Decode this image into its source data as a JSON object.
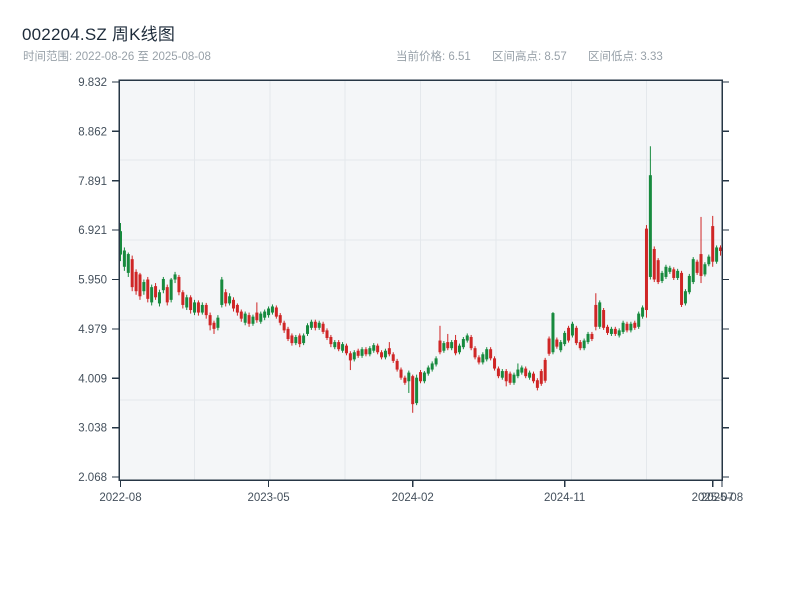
{
  "header": {
    "title": "002204.SZ 周K线图",
    "subtitle": "时间范围: 2022-08-26 至 2025-08-08",
    "stats": [
      {
        "label": "当前价格",
        "value": "6.51",
        "text": "当前价格: 6.51"
      },
      {
        "label": "区间高点",
        "value": "8.57",
        "text": "区间高点: 8.57"
      },
      {
        "label": "区间低点",
        "value": "3.33",
        "text": "区间低点: 3.33"
      }
    ]
  },
  "chart_data": {
    "type": "candlestick",
    "title": "002204.SZ 周K线图",
    "symbol": "002204.SZ",
    "period": "weekly",
    "date_range": {
      "start": "2022-08-26",
      "end": "2025-08-08"
    },
    "current_price": 6.51,
    "range_high": 8.57,
    "range_low": 3.33,
    "legend": "none",
    "grid": {
      "h_fractions": [
        0.2,
        0.4,
        0.6,
        0.8
      ],
      "v_fractions": [
        0.125,
        0.25,
        0.375,
        0.5,
        0.625,
        0.75,
        0.875
      ]
    },
    "colors": {
      "up": "#178a3e",
      "down": "#cf2626",
      "frame": "#263645",
      "grid": "#e4e8ec",
      "plot_bg": "#f4f6f8"
    },
    "y_axis": {
      "min": 2.068,
      "max": 9.832,
      "ticks": [
        9.832,
        8.862,
        7.891,
        6.921,
        5.95,
        4.979,
        4.009,
        3.038,
        2.068
      ],
      "tick_labels": [
        "9.832",
        "8.862",
        "7.891",
        "6.921",
        "5.950",
        "4.979",
        "4.009",
        "3.038",
        "2.068"
      ]
    },
    "x_axis": {
      "tick_weeks": [
        0,
        38,
        75,
        114,
        152,
        154.4
      ],
      "tick_labels": [
        "2022-08",
        "2023-05",
        "2024-02",
        "2024-11",
        "2025-07",
        "2025-08"
      ]
    },
    "candles_format": [
      "open",
      "high",
      "low",
      "close"
    ],
    "candles": [
      [
        6.44,
        7.06,
        6.31,
        6.9
      ],
      [
        6.2,
        6.58,
        6.12,
        6.52
      ],
      [
        6.08,
        6.48,
        6.0,
        6.45
      ],
      [
        6.35,
        6.42,
        5.72,
        5.8
      ],
      [
        6.1,
        6.15,
        5.65,
        5.72
      ],
      [
        6.05,
        6.08,
        5.55,
        5.62
      ],
      [
        5.72,
        5.95,
        5.65,
        5.9
      ],
      [
        5.95,
        6.0,
        5.5,
        5.57
      ],
      [
        5.5,
        5.85,
        5.44,
        5.8
      ],
      [
        5.82,
        5.88,
        5.55,
        5.6
      ],
      [
        5.48,
        5.75,
        5.42,
        5.7
      ],
      [
        5.74,
        6.0,
        5.68,
        5.96
      ],
      [
        5.8,
        5.85,
        5.44,
        5.5
      ],
      [
        5.55,
        5.98,
        5.5,
        5.95
      ],
      [
        5.95,
        6.1,
        5.88,
        6.05
      ],
      [
        6.0,
        6.04,
        5.64,
        5.7
      ],
      [
        5.7,
        5.74,
        5.38,
        5.45
      ],
      [
        5.4,
        5.65,
        5.35,
        5.6
      ],
      [
        5.6,
        5.64,
        5.28,
        5.35
      ],
      [
        5.3,
        5.55,
        5.25,
        5.5
      ],
      [
        5.5,
        5.54,
        5.24,
        5.3
      ],
      [
        5.3,
        5.5,
        5.26,
        5.45
      ],
      [
        5.45,
        5.49,
        5.18,
        5.25
      ],
      [
        5.25,
        5.3,
        4.95,
        5.05
      ],
      [
        5.1,
        5.14,
        4.88,
        4.98
      ],
      [
        5.0,
        5.25,
        4.95,
        5.2
      ],
      [
        5.45,
        6.0,
        5.4,
        5.95
      ],
      [
        5.7,
        5.76,
        5.42,
        5.48
      ],
      [
        5.48,
        5.68,
        5.44,
        5.62
      ],
      [
        5.55,
        5.6,
        5.32,
        5.38
      ],
      [
        5.45,
        5.48,
        5.24,
        5.3
      ],
      [
        5.32,
        5.36,
        5.12,
        5.18
      ],
      [
        5.1,
        5.32,
        5.05,
        5.28
      ],
      [
        5.25,
        5.3,
        5.02,
        5.08
      ],
      [
        5.08,
        5.26,
        5.04,
        5.22
      ],
      [
        5.3,
        5.5,
        5.1,
        5.15
      ],
      [
        5.12,
        5.32,
        5.08,
        5.28
      ],
      [
        5.2,
        5.36,
        5.15,
        5.32
      ],
      [
        5.25,
        5.42,
        5.2,
        5.38
      ],
      [
        5.3,
        5.46,
        5.26,
        5.42
      ],
      [
        5.4,
        5.44,
        5.18,
        5.22
      ],
      [
        5.25,
        5.29,
        5.05,
        5.1
      ],
      [
        5.1,
        5.14,
        4.9,
        4.95
      ],
      [
        4.98,
        5.02,
        4.74,
        4.78
      ],
      [
        4.85,
        4.89,
        4.65,
        4.7
      ],
      [
        4.7,
        4.86,
        4.66,
        4.82
      ],
      [
        4.85,
        4.89,
        4.62,
        4.68
      ],
      [
        4.7,
        4.89,
        4.66,
        4.85
      ],
      [
        4.88,
        5.09,
        4.84,
        5.05
      ],
      [
        5.0,
        5.16,
        4.96,
        5.12
      ],
      [
        5.12,
        5.16,
        4.95,
        5.0
      ],
      [
        5.0,
        5.14,
        4.96,
        5.1
      ],
      [
        5.08,
        5.12,
        4.88,
        4.92
      ],
      [
        4.95,
        4.99,
        4.76,
        4.8
      ],
      [
        4.82,
        4.86,
        4.62,
        4.68
      ],
      [
        4.62,
        4.76,
        4.58,
        4.72
      ],
      [
        4.72,
        4.76,
        4.54,
        4.58
      ],
      [
        4.55,
        4.72,
        4.51,
        4.68
      ],
      [
        4.65,
        4.69,
        4.46,
        4.5
      ],
      [
        4.5,
        4.54,
        4.17,
        4.36
      ],
      [
        4.38,
        4.56,
        4.34,
        4.52
      ],
      [
        4.55,
        4.59,
        4.41,
        4.45
      ],
      [
        4.45,
        4.62,
        4.41,
        4.58
      ],
      [
        4.58,
        4.62,
        4.44,
        4.48
      ],
      [
        4.48,
        4.64,
        4.44,
        4.6
      ],
      [
        4.55,
        4.7,
        4.51,
        4.66
      ],
      [
        4.65,
        4.69,
        4.48,
        4.52
      ],
      [
        4.52,
        4.56,
        4.38,
        4.42
      ],
      [
        4.42,
        4.59,
        4.38,
        4.55
      ],
      [
        4.6,
        4.72,
        4.44,
        4.48
      ],
      [
        4.48,
        4.52,
        4.31,
        4.35
      ],
      [
        4.35,
        4.39,
        4.14,
        4.18
      ],
      [
        4.18,
        4.22,
        3.98,
        4.02
      ],
      [
        4.02,
        4.06,
        3.88,
        3.92
      ],
      [
        3.95,
        4.16,
        3.72,
        4.12
      ],
      [
        4.05,
        4.08,
        3.33,
        3.5
      ],
      [
        3.52,
        4.08,
        3.48,
        4.02
      ],
      [
        4.13,
        4.17,
        3.91,
        3.95
      ],
      [
        3.95,
        4.15,
        3.91,
        4.12
      ],
      [
        4.1,
        4.26,
        4.06,
        4.22
      ],
      [
        4.18,
        4.34,
        4.14,
        4.3
      ],
      [
        4.28,
        4.44,
        4.24,
        4.4
      ],
      [
        4.75,
        5.04,
        4.48,
        4.52
      ],
      [
        4.55,
        4.74,
        4.51,
        4.7
      ],
      [
        4.72,
        4.88,
        4.56,
        4.6
      ],
      [
        4.6,
        4.76,
        4.56,
        4.72
      ],
      [
        4.76,
        4.86,
        4.46,
        4.5
      ],
      [
        4.52,
        4.69,
        4.48,
        4.65
      ],
      [
        4.62,
        4.82,
        4.58,
        4.78
      ],
      [
        4.75,
        4.89,
        4.71,
        4.85
      ],
      [
        4.82,
        4.86,
        4.56,
        4.6
      ],
      [
        4.6,
        4.64,
        4.38,
        4.42
      ],
      [
        4.42,
        4.46,
        4.28,
        4.32
      ],
      [
        4.32,
        4.52,
        4.28,
        4.48
      ],
      [
        4.38,
        4.62,
        4.34,
        4.58
      ],
      [
        4.58,
        4.62,
        4.36,
        4.4
      ],
      [
        4.4,
        4.44,
        4.16,
        4.2
      ],
      [
        4.2,
        4.24,
        4.01,
        4.05
      ],
      [
        4.02,
        4.19,
        3.98,
        4.15
      ],
      [
        4.15,
        4.19,
        3.85,
        3.95
      ],
      [
        4.1,
        4.14,
        3.88,
        3.92
      ],
      [
        3.92,
        4.12,
        3.88,
        4.08
      ],
      [
        4.05,
        4.3,
        4.01,
        4.18
      ],
      [
        4.12,
        4.26,
        4.08,
        4.22
      ],
      [
        4.2,
        4.24,
        4.01,
        4.05
      ],
      [
        4.02,
        4.16,
        3.98,
        4.12
      ],
      [
        4.1,
        4.14,
        3.91,
        3.95
      ],
      [
        3.97,
        4.01,
        3.77,
        3.82
      ],
      [
        4.15,
        4.19,
        3.86,
        3.9
      ],
      [
        4.37,
        4.41,
        3.92,
        3.96
      ],
      [
        4.79,
        4.83,
        4.45,
        4.49
      ],
      [
        4.52,
        5.31,
        4.48,
        5.29
      ],
      [
        4.77,
        4.81,
        4.59,
        4.63
      ],
      [
        4.56,
        4.76,
        4.52,
        4.72
      ],
      [
        4.68,
        4.94,
        4.64,
        4.9
      ],
      [
        5.0,
        5.04,
        4.71,
        4.75
      ],
      [
        4.85,
        5.12,
        4.81,
        5.08
      ],
      [
        5.0,
        5.04,
        4.66,
        4.7
      ],
      [
        4.72,
        4.76,
        4.56,
        4.6
      ],
      [
        4.6,
        4.79,
        4.56,
        4.75
      ],
      [
        4.72,
        4.92,
        4.68,
        4.88
      ],
      [
        4.88,
        4.92,
        4.74,
        4.78
      ],
      [
        5.45,
        5.68,
        4.95,
        5.02
      ],
      [
        5.02,
        5.54,
        4.98,
        5.5
      ],
      [
        5.35,
        5.39,
        4.96,
        5.0
      ],
      [
        5.02,
        5.06,
        4.86,
        4.9
      ],
      [
        4.88,
        5.02,
        4.84,
        4.98
      ],
      [
        4.98,
        5.02,
        4.84,
        4.88
      ],
      [
        4.85,
        4.99,
        4.81,
        4.95
      ],
      [
        4.92,
        5.14,
        4.88,
        5.1
      ],
      [
        5.08,
        5.12,
        4.91,
        4.95
      ],
      [
        4.95,
        5.12,
        4.91,
        5.08
      ],
      [
        5.1,
        5.14,
        4.96,
        5.0
      ],
      [
        5.02,
        5.32,
        4.98,
        5.28
      ],
      [
        5.22,
        5.44,
        5.18,
        5.4
      ],
      [
        6.95,
        7.02,
        5.2,
        5.35
      ],
      [
        6.0,
        8.57,
        5.95,
        8.0
      ],
      [
        6.55,
        6.6,
        5.9,
        5.95
      ],
      [
        6.33,
        6.37,
        5.86,
        5.9
      ],
      [
        5.92,
        6.12,
        5.88,
        6.08
      ],
      [
        6.0,
        6.24,
        5.96,
        6.2
      ],
      [
        6.1,
        6.22,
        6.06,
        6.18
      ],
      [
        6.15,
        6.19,
        5.94,
        5.98
      ],
      [
        5.98,
        6.16,
        5.94,
        6.12
      ],
      [
        6.08,
        6.12,
        5.41,
        5.45
      ],
      [
        5.48,
        5.76,
        5.44,
        5.72
      ],
      [
        5.7,
        6.06,
        5.66,
        6.02
      ],
      [
        5.9,
        6.39,
        5.86,
        6.35
      ],
      [
        6.3,
        6.34,
        6.04,
        6.08
      ],
      [
        6.45,
        7.18,
        5.88,
        6.02
      ],
      [
        6.05,
        6.29,
        6.01,
        6.25
      ],
      [
        6.25,
        6.44,
        6.21,
        6.4
      ],
      [
        7.0,
        7.2,
        6.2,
        6.3
      ],
      [
        6.3,
        6.62,
        6.26,
        6.58
      ],
      [
        6.58,
        6.62,
        6.42,
        6.51
      ]
    ]
  }
}
